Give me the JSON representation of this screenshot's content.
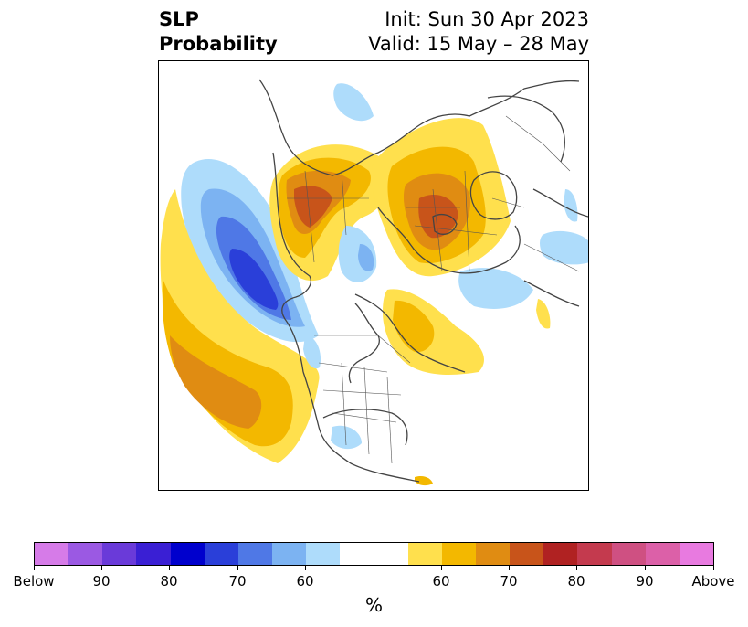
{
  "header": {
    "title_line1": "SLP",
    "title_line2": "Probability",
    "init": "Init: Sun 30 Apr 2023",
    "valid": "Valid: 15 May – 28 May"
  },
  "colorbar": {
    "colors": [
      "#d67be8",
      "#9b59e3",
      "#6a3ad9",
      "#3a1fd4",
      "#0000cd",
      "#2a3fd9",
      "#4f78e6",
      "#7cb3f2",
      "#aedcfb",
      "#ffffff",
      "#ffe04d",
      "#f3b800",
      "#e08c12",
      "#c8541a",
      "#b02222",
      "#c43a4e",
      "#cf5082",
      "#dc60a8",
      "#e87ae0"
    ],
    "tick_labels": [
      "Below",
      "90",
      "80",
      "70",
      "60",
      "60",
      "70",
      "80",
      "90",
      "Above"
    ],
    "label": "%"
  }
}
